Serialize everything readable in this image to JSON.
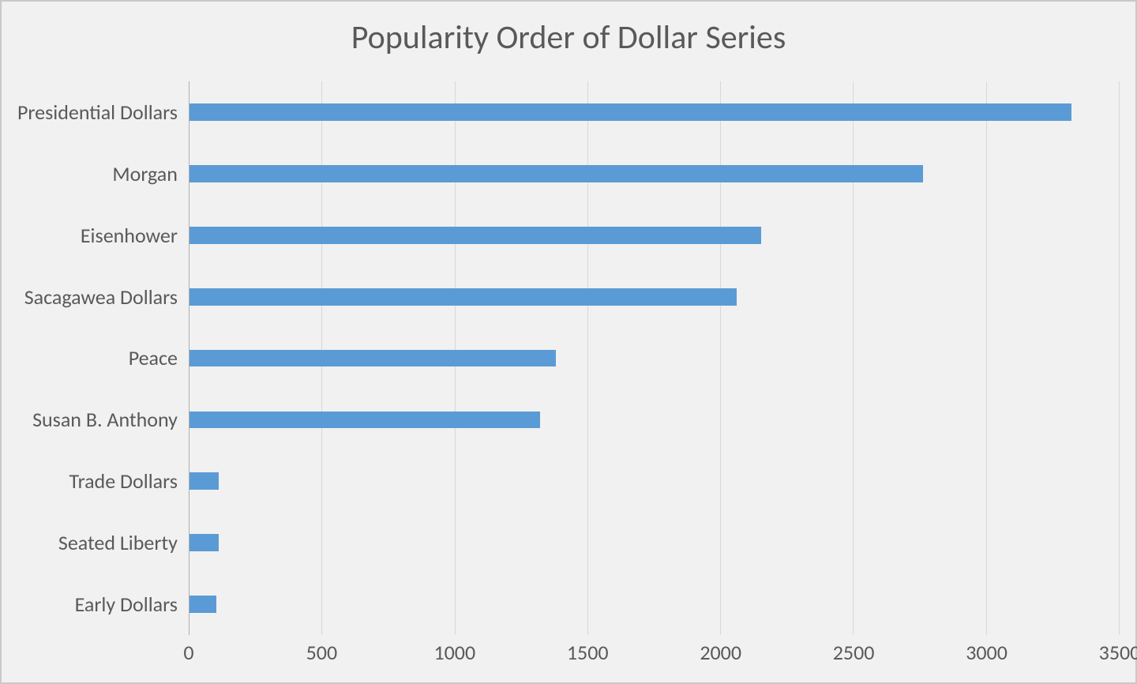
{
  "chart": {
    "type": "bar-horizontal",
    "title": "Popularity Order of Dollar Series",
    "title_fontsize": 42,
    "title_color": "#595959",
    "background_color": "#f1f1f1",
    "border_color": "#c9c9c9",
    "grid_color": "#d8d8d8",
    "axis_line_color": "#b0b0b0",
    "label_color": "#595959",
    "label_fontsize": 26,
    "bar_color": "#5b9bd5",
    "bar_height_pct": 28,
    "x_axis": {
      "min": 0,
      "max": 3500,
      "tick_step": 500,
      "ticks": [
        0,
        500,
        1000,
        1500,
        2000,
        2500,
        3000,
        3500
      ]
    },
    "categories": [
      "Presidential Dollars",
      "Morgan",
      "Eisenhower",
      "Sacagawea Dollars",
      "Peace",
      "Susan B. Anthony",
      "Trade Dollars",
      "Seated Liberty",
      "Early Dollars"
    ],
    "values": [
      3320,
      2760,
      2150,
      2060,
      1380,
      1320,
      110,
      110,
      100
    ]
  }
}
